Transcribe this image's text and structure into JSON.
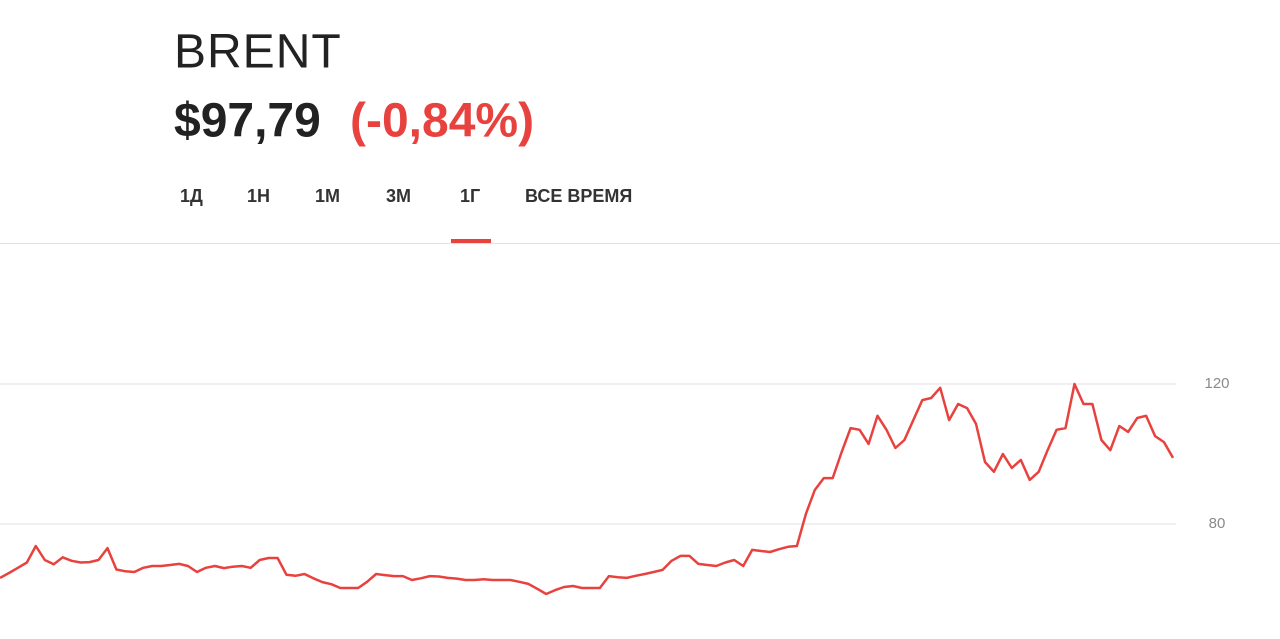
{
  "header": {
    "ticker": "BRENT",
    "price": "$97,79",
    "change": "(-0,84%)"
  },
  "tabs": [
    "1Д",
    "1Н",
    "1М",
    "3М",
    "1Г",
    "ВСЕ ВРЕМЯ"
  ],
  "chart_data": {
    "type": "line",
    "color": "#e8423f",
    "grid": true,
    "ylim": [
      50,
      160
    ],
    "yticks": [
      80,
      120
    ],
    "values": [
      64.6,
      66,
      67.5,
      69,
      73.7,
      69.7,
      68.5,
      70.5,
      69.5,
      69,
      69.1,
      69.7,
      73.1,
      67,
      66.5,
      66.3,
      67.5,
      68,
      68,
      68.3,
      68.6,
      68,
      66.3,
      67.5,
      68,
      67.4,
      67.8,
      68,
      67.5,
      69.7,
      70.3,
      70.3,
      65.5,
      65.2,
      65.7,
      64.5,
      63.4,
      62.8,
      61.7,
      61.7,
      61.7,
      63.5,
      65.7,
      65.4,
      65.1,
      65.1,
      64,
      64.5,
      65.1,
      65,
      64.6,
      64.4,
      64,
      64,
      64.2,
      64,
      64,
      64,
      63.5,
      62.9,
      61.5,
      60,
      61.1,
      62,
      62.3,
      61.7,
      61.7,
      61.7,
      65.1,
      64.8,
      64.6,
      65.2,
      65.7,
      66.3,
      66.9,
      69.5,
      70.9,
      70.9,
      68.6,
      68.3,
      68,
      69,
      69.7,
      68,
      72.6,
      72.3,
      72,
      72.8,
      73.5,
      73.7,
      82.9,
      89.7,
      93.1,
      93.1,
      100.6,
      107.4,
      106.9,
      102.9,
      110.9,
      106.9,
      101.7,
      104,
      109.7,
      115.4,
      116,
      118.9,
      109.7,
      114.3,
      113.1,
      108.6,
      97.7,
      94.9,
      100,
      96,
      98.3,
      92.6,
      94.9,
      101.1,
      106.9,
      107.4,
      120,
      114.3,
      114.3,
      104,
      101.1,
      108,
      106.3,
      110.3,
      110.9,
      105.1,
      103.4,
      98.9
    ]
  }
}
